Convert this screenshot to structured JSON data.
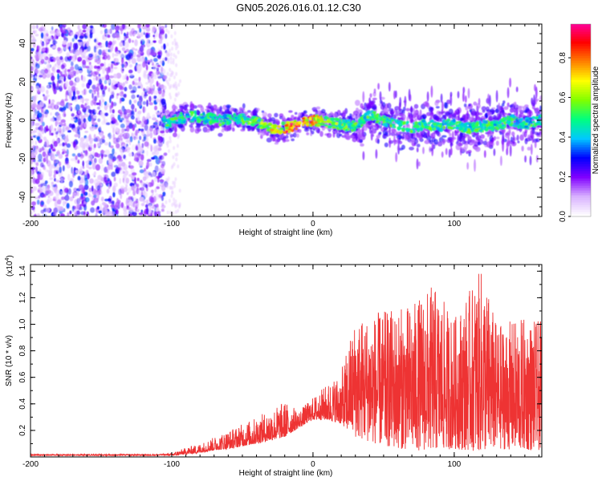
{
  "title": "GN05.2026.016.01.12.C30",
  "chart_data": [
    {
      "type": "heatmap",
      "xlabel": "Height of straight line (km)",
      "ylabel": "Frequency (Hz)",
      "xlim": [
        -200,
        162
      ],
      "ylim": [
        -50,
        50
      ],
      "xticks": [
        -200,
        -100,
        0,
        100
      ],
      "yticks": [
        -40,
        -20,
        0,
        20,
        40
      ],
      "colorbar": {
        "label": "Normalized spectral amplitude",
        "range": [
          0.0,
          0.97
        ],
        "ticks": [
          "0.0",
          "0.2",
          "0.4",
          "0.6",
          "0.8"
        ],
        "tick_values": [
          0.0,
          0.2,
          0.4,
          0.6,
          0.8
        ],
        "colors": [
          "#ffffff",
          "#d8b0ff",
          "#8000ff",
          "#0000ff",
          "#00c8ff",
          "#00ff80",
          "#80ff00",
          "#ffff00",
          "#ff8000",
          "#ff0000",
          "#ff00a0"
        ]
      },
      "ridge": [
        {
          "x": -105,
          "y": -2
        },
        {
          "x": -95,
          "y": 1
        },
        {
          "x": -85,
          "y": 2
        },
        {
          "x": -75,
          "y": 1
        },
        {
          "x": -65,
          "y": 0
        },
        {
          "x": -55,
          "y": 1
        },
        {
          "x": -45,
          "y": 0
        },
        {
          "x": -35,
          "y": -2
        },
        {
          "x": -28,
          "y": -5
        },
        {
          "x": -20,
          "y": -4
        },
        {
          "x": -10,
          "y": -2
        },
        {
          "x": 0,
          "y": 0
        },
        {
          "x": 10,
          "y": -1
        },
        {
          "x": 20,
          "y": -2
        },
        {
          "x": 30,
          "y": -3
        },
        {
          "x": 40,
          "y": 3
        },
        {
          "x": 50,
          "y": 0
        },
        {
          "x": 60,
          "y": -2
        },
        {
          "x": 70,
          "y": -4
        },
        {
          "x": 80,
          "y": -2
        },
        {
          "x": 90,
          "y": -3
        },
        {
          "x": 100,
          "y": -2
        },
        {
          "x": 110,
          "y": -4
        },
        {
          "x": 120,
          "y": -3
        },
        {
          "x": 130,
          "y": -3
        },
        {
          "x": 140,
          "y": 0
        },
        {
          "x": 150,
          "y": -2
        },
        {
          "x": 160,
          "y": 0
        }
      ]
    },
    {
      "type": "line",
      "xlabel": "Height of straight line (km)",
      "ylabel": "SNR (10 * v/v)",
      "y_multiplier": "(x10",
      "y_multiplier_exp": "4",
      "y_multiplier_close": ")",
      "xlim": [
        -200,
        162
      ],
      "ylim": [
        0,
        1.45
      ],
      "xticks": [
        -200,
        -100,
        0,
        100
      ],
      "yticks": [
        0.2,
        0.4,
        0.6,
        0.8,
        1.0,
        1.2,
        1.4
      ],
      "ytick_labels": [
        "0.2",
        "0.4",
        "0.6",
        "0.8",
        "1.0",
        "1.2",
        "1.4"
      ],
      "color": "#ee3333",
      "envelope": [
        {
          "x": -200,
          "base": 0.01,
          "peak": 0.02
        },
        {
          "x": -110,
          "base": 0.01,
          "peak": 0.02
        },
        {
          "x": -100,
          "base": 0.01,
          "peak": 0.03
        },
        {
          "x": -90,
          "base": 0.02,
          "peak": 0.07
        },
        {
          "x": -80,
          "base": 0.03,
          "peak": 0.1
        },
        {
          "x": -70,
          "base": 0.05,
          "peak": 0.15
        },
        {
          "x": -60,
          "base": 0.06,
          "peak": 0.2
        },
        {
          "x": -50,
          "base": 0.08,
          "peak": 0.25
        },
        {
          "x": -40,
          "base": 0.1,
          "peak": 0.3
        },
        {
          "x": -20,
          "base": 0.15,
          "peak": 0.42
        },
        {
          "x": -10,
          "base": 0.22,
          "peak": 0.35
        },
        {
          "x": 0,
          "base": 0.28,
          "peak": 0.45
        },
        {
          "x": 10,
          "base": 0.28,
          "peak": 0.55
        },
        {
          "x": 20,
          "base": 0.25,
          "peak": 0.65
        },
        {
          "x": 30,
          "base": 0.15,
          "peak": 1.05
        },
        {
          "x": 50,
          "base": 0.08,
          "peak": 1.1
        },
        {
          "x": 70,
          "base": 0.05,
          "peak": 1.15
        },
        {
          "x": 85,
          "base": 0.05,
          "peak": 1.3
        },
        {
          "x": 100,
          "base": 0.06,
          "peak": 1.05
        },
        {
          "x": 120,
          "base": 0.04,
          "peak": 1.43
        },
        {
          "x": 130,
          "base": 0.06,
          "peak": 1.0
        },
        {
          "x": 150,
          "base": 0.05,
          "peak": 1.05
        },
        {
          "x": 162,
          "base": 0.05,
          "peak": 1.02
        }
      ]
    }
  ]
}
